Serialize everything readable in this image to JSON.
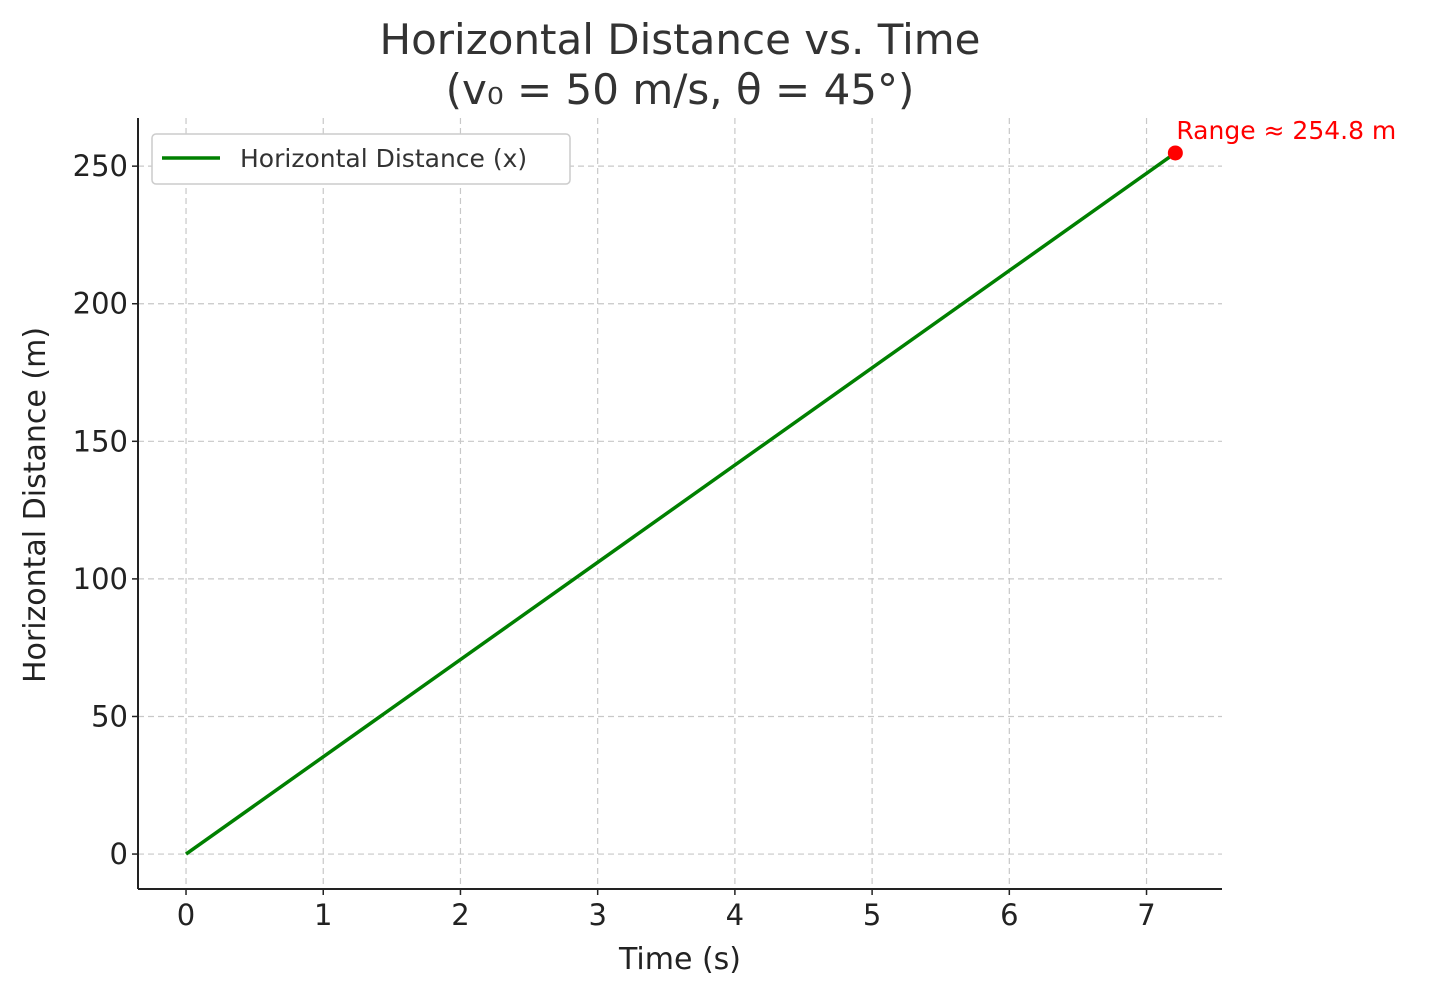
{
  "chart_data": {
    "type": "line",
    "title_line1": "Horizontal Distance vs. Time",
    "title_line2": "(v₀ = 50 m/s, θ = 45°)",
    "xlabel": "Time (s)",
    "ylabel": "Horizontal Distance (m)",
    "xlim": [
      -0.35,
      7.55
    ],
    "ylim": [
      -12.7,
      267.5
    ],
    "xticks": [
      0,
      1,
      2,
      3,
      4,
      5,
      6,
      7
    ],
    "yticks": [
      0,
      50,
      100,
      150,
      200,
      250
    ],
    "grid": true,
    "legend_position": "top-left",
    "series": [
      {
        "name": "Horizontal Distance (x)",
        "color": "#008000",
        "x": [
          0,
          7.21
        ],
        "y": [
          0,
          254.8
        ]
      }
    ],
    "annotation": {
      "text": "Range ≈ 254.8 m",
      "x": 7.21,
      "y": 254.8,
      "color": "#ff0000"
    }
  }
}
